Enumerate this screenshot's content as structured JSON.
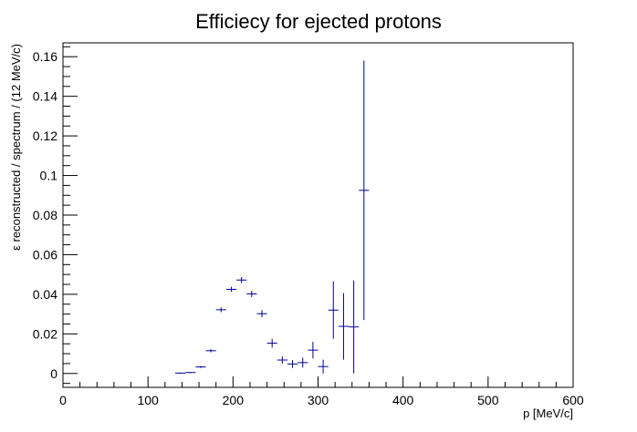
{
  "chart_data": {
    "type": "scatter",
    "title": "Efficiecy for ejected protons",
    "xlabel": "p [MeV/c]",
    "ylabel": "ε reconstructed / spectrum / (12 MeV/c)",
    "xlim": [
      0,
      600
    ],
    "ylim": [
      -0.007,
      0.167
    ],
    "x_ticks": [
      0,
      100,
      200,
      300,
      400,
      500,
      600
    ],
    "y_ticks": [
      0,
      0.02,
      0.04,
      0.06,
      0.08,
      0.1,
      0.12,
      0.14,
      0.16
    ],
    "grid": false,
    "legend": "none",
    "bin_width": 12,
    "series_color": "#000099",
    "points": [
      {
        "x": 138,
        "y": 0.0002,
        "err": 0.0003
      },
      {
        "x": 150,
        "y": 0.0005,
        "err": 0.0003
      },
      {
        "x": 162,
        "y": 0.0033,
        "err": 0.0005
      },
      {
        "x": 174,
        "y": 0.0115,
        "err": 0.0008
      },
      {
        "x": 186,
        "y": 0.0322,
        "err": 0.0012
      },
      {
        "x": 198,
        "y": 0.0425,
        "err": 0.0013
      },
      {
        "x": 210,
        "y": 0.0472,
        "err": 0.0015
      },
      {
        "x": 222,
        "y": 0.0402,
        "err": 0.0016
      },
      {
        "x": 234,
        "y": 0.0302,
        "err": 0.0018
      },
      {
        "x": 246,
        "y": 0.0153,
        "err": 0.0022
      },
      {
        "x": 258,
        "y": 0.0068,
        "err": 0.0018
      },
      {
        "x": 270,
        "y": 0.0048,
        "err": 0.002
      },
      {
        "x": 282,
        "y": 0.0055,
        "err": 0.0025
      },
      {
        "x": 294,
        "y": 0.0118,
        "err": 0.0042
      },
      {
        "x": 306,
        "y": 0.0035,
        "err": 0.0035
      },
      {
        "x": 318,
        "y": 0.032,
        "err": 0.0145
      },
      {
        "x": 330,
        "y": 0.0238,
        "err": 0.0168
      },
      {
        "x": 342,
        "y": 0.0235,
        "err": 0.0235
      },
      {
        "x": 354,
        "y": 0.0925,
        "err": 0.0655
      }
    ]
  }
}
